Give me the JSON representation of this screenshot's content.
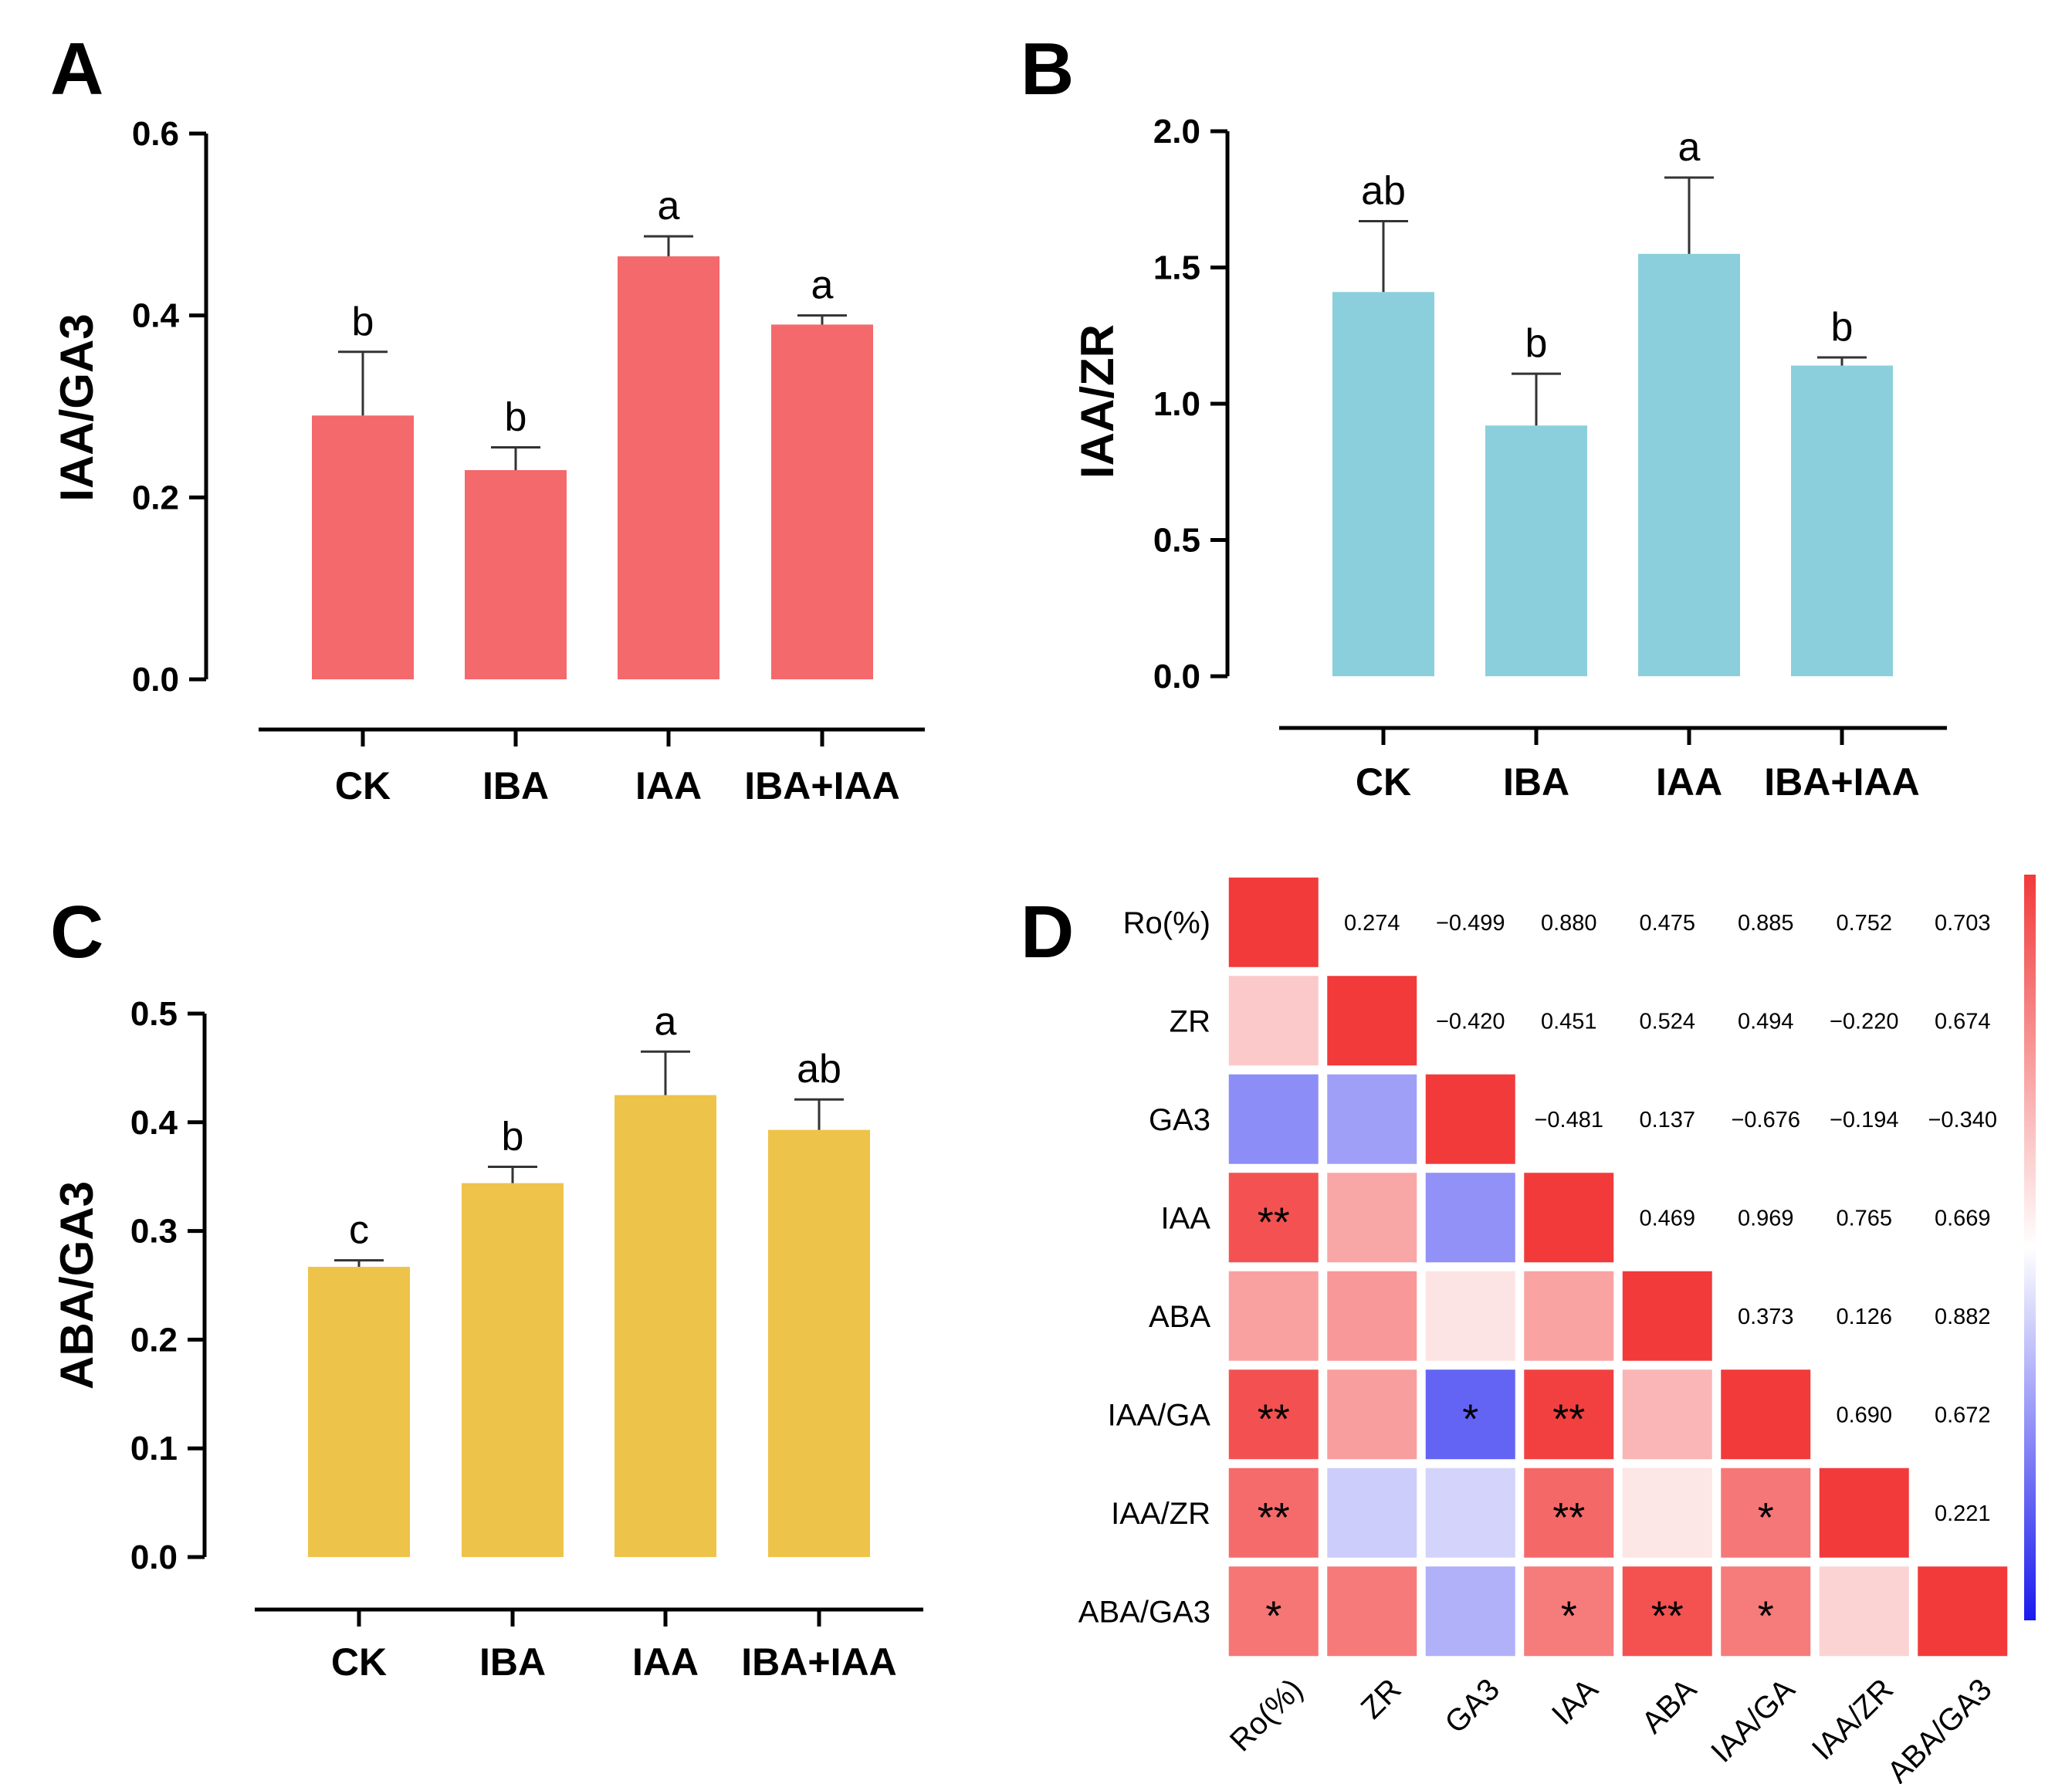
{
  "panels": {
    "A": "A",
    "B": "B",
    "C": "C",
    "D": "D"
  },
  "chart_data": [
    {
      "panel": "A",
      "type": "bar",
      "ylabel": "IAA/GA3",
      "xlabel": "",
      "categories": [
        "CK",
        "IBA",
        "IAA",
        "IBA+IAA"
      ],
      "values": [
        0.29,
        0.23,
        0.465,
        0.39
      ],
      "errors": [
        0.07,
        0.025,
        0.022,
        0.01
      ],
      "sig_letters": [
        "b",
        "b",
        "a",
        "a"
      ],
      "ylim": [
        0,
        0.6
      ],
      "yticks": [
        "0.0",
        "0.2",
        "0.4",
        "0.6"
      ],
      "color": "#f4696b"
    },
    {
      "panel": "B",
      "type": "bar",
      "ylabel": "IAA/ZR",
      "xlabel": "",
      "categories": [
        "CK",
        "IBA",
        "IAA",
        "IBA+IAA"
      ],
      "values": [
        1.41,
        0.92,
        1.55,
        1.14
      ],
      "errors": [
        0.26,
        0.19,
        0.28,
        0.03
      ],
      "sig_letters": [
        "ab",
        "b",
        "a",
        "b"
      ],
      "ylim": [
        0,
        2.0
      ],
      "yticks": [
        "0.0",
        "0.5",
        "1.0",
        "1.5",
        "2.0"
      ],
      "color": "#8ccfdc"
    },
    {
      "panel": "C",
      "type": "bar",
      "ylabel": "ABA/GA3",
      "xlabel": "",
      "categories": [
        "CK",
        "IBA",
        "IAA",
        "IBA+IAA"
      ],
      "values": [
        0.267,
        0.344,
        0.425,
        0.393
      ],
      "errors": [
        0.006,
        0.015,
        0.04,
        0.028
      ],
      "sig_letters": [
        "c",
        "b",
        "a",
        "ab"
      ],
      "ylim": [
        0,
        0.5
      ],
      "yticks": [
        "0.0",
        "0.1",
        "0.2",
        "0.3",
        "0.4",
        "0.5"
      ],
      "color": "#eec34a"
    },
    {
      "panel": "D",
      "type": "heatmap",
      "title": "",
      "labels": [
        "Ro(%)",
        "ZR",
        "GA3",
        "IAA",
        "ABA",
        "IAA/GA",
        "IAA/ZR",
        "ABA/GA3"
      ],
      "upper_values": [
        [
          "",
          "0.274",
          "−0.499",
          "0.880",
          "0.475",
          "0.885",
          "0.752",
          "0.703"
        ],
        [
          "",
          "",
          "−0.420",
          "0.451",
          "0.524",
          "0.494",
          "−0.220",
          "0.674"
        ],
        [
          "",
          "",
          "",
          "−0.481",
          "0.137",
          "−0.676",
          "−0.194",
          "−0.340"
        ],
        [
          "",
          "",
          "",
          "",
          "0.469",
          "0.969",
          "0.765",
          "0.669"
        ],
        [
          "",
          "",
          "",
          "",
          "",
          "0.373",
          "0.126",
          "0.882"
        ],
        [
          "",
          "",
          "",
          "",
          "",
          "",
          "0.690",
          "0.672"
        ],
        [
          "",
          "",
          "",
          "",
          "",
          "",
          "",
          "0.221"
        ],
        [
          "",
          "",
          "",
          "",
          "",
          "",
          "",
          ""
        ]
      ],
      "matrix": [
        [
          1,
          0.274,
          -0.499,
          0.88,
          0.475,
          0.885,
          0.752,
          0.703
        ],
        [
          0.274,
          1,
          -0.42,
          0.451,
          0.524,
          0.494,
          -0.22,
          0.674
        ],
        [
          -0.499,
          -0.42,
          1,
          -0.481,
          0.137,
          -0.676,
          -0.194,
          -0.34
        ],
        [
          0.88,
          0.451,
          -0.481,
          1,
          0.469,
          0.969,
          0.765,
          0.669
        ],
        [
          0.475,
          0.524,
          0.137,
          0.469,
          1,
          0.373,
          0.126,
          0.882
        ],
        [
          0.885,
          0.494,
          -0.676,
          0.969,
          0.373,
          1,
          0.69,
          0.672
        ],
        [
          0.752,
          -0.22,
          -0.194,
          0.765,
          0.126,
          0.69,
          1,
          0.221
        ],
        [
          0.703,
          0.674,
          -0.34,
          0.669,
          0.882,
          0.672,
          0.221,
          1
        ]
      ],
      "stars": [
        [
          "",
          "",
          "",
          "",
          "",
          "",
          "",
          ""
        ],
        [
          "",
          "",
          "",
          "",
          "",
          "",
          "",
          ""
        ],
        [
          "",
          "",
          "",
          "",
          "",
          "",
          "",
          ""
        ],
        [
          "**",
          "",
          "",
          "",
          "",
          "",
          "",
          ""
        ],
        [
          "",
          "",
          "",
          "",
          "",
          "",
          "",
          ""
        ],
        [
          "**",
          "",
          "*",
          "**",
          "",
          "",
          "",
          ""
        ],
        [
          "**",
          "",
          "",
          "**",
          "",
          "*",
          "",
          ""
        ],
        [
          "*",
          "",
          "",
          "*",
          "**",
          "*",
          "",
          ""
        ]
      ],
      "color_range": [
        -1,
        1
      ],
      "colors": {
        "positive": "#f23a3a",
        "neutral": "#ffffff",
        "negative": "#1a1aee"
      },
      "legend": "colorbar-right"
    }
  ]
}
